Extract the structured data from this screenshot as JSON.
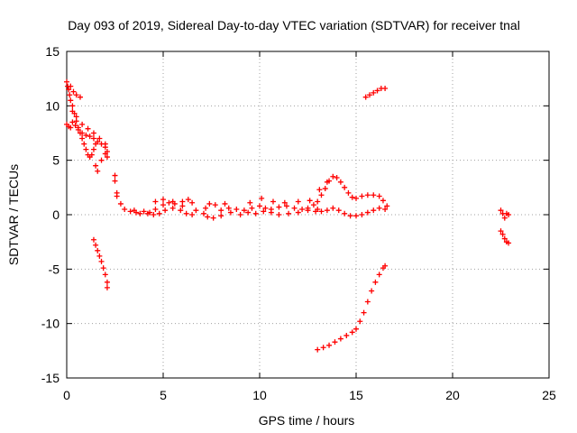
{
  "chart_data": {
    "type": "scatter",
    "title": "Day 093 of 2019, Sidereal Day-to-day VTEC variation (SDTVAR) for receiver tnal",
    "xlabel": "GPS time / hours",
    "ylabel": "SDTVAR / TECUs",
    "xlim": [
      0,
      25
    ],
    "ylim": [
      -15,
      15
    ],
    "xticks": [
      0,
      5,
      10,
      15,
      20,
      25
    ],
    "yticks": [
      -15,
      -10,
      -5,
      0,
      5,
      10,
      15
    ],
    "xtick_labels": [
      "0",
      "5",
      "10",
      "15",
      "20",
      "25"
    ],
    "ytick_labels": [
      "-15",
      "-10",
      "-5",
      "0",
      "5",
      "10",
      "15"
    ],
    "grid": true,
    "legend": "none",
    "marker": "+",
    "color": "#ff0000",
    "series": [
      {
        "points": [
          [
            0.0,
            12.2
          ],
          [
            0.05,
            11.8
          ],
          [
            0.1,
            11.5
          ],
          [
            0.15,
            11.0
          ],
          [
            0.2,
            10.5
          ],
          [
            0.3,
            10.0
          ],
          [
            0.4,
            9.3
          ],
          [
            0.5,
            8.6
          ],
          [
            0.6,
            8.0
          ],
          [
            0.7,
            7.5
          ],
          [
            0.8,
            7.0
          ],
          [
            0.9,
            6.5
          ],
          [
            1.0,
            6.0
          ],
          [
            1.1,
            5.5
          ],
          [
            1.2,
            5.3
          ],
          [
            1.3,
            5.5
          ],
          [
            1.4,
            6.0
          ],
          [
            1.5,
            6.5
          ],
          [
            0.2,
            11.8
          ],
          [
            0.35,
            11.3
          ],
          [
            0.5,
            11.0
          ],
          [
            0.7,
            10.8
          ],
          [
            0.0,
            8.3
          ],
          [
            0.1,
            8.1
          ],
          [
            0.2,
            8.0
          ],
          [
            0.3,
            8.5
          ],
          [
            0.45,
            8.2
          ],
          [
            0.6,
            7.8
          ],
          [
            0.8,
            7.5
          ],
          [
            1.0,
            7.3
          ],
          [
            1.2,
            7.2
          ],
          [
            1.4,
            7.0
          ],
          [
            1.6,
            6.7
          ],
          [
            1.8,
            6.5
          ],
          [
            2.0,
            6.2
          ],
          [
            2.1,
            5.8
          ],
          [
            0.3,
            9.5
          ],
          [
            0.5,
            9.0
          ],
          [
            0.8,
            8.3
          ],
          [
            1.1,
            7.9
          ],
          [
            1.4,
            7.5
          ],
          [
            1.7,
            7.0
          ],
          [
            2.0,
            6.5
          ],
          [
            1.5,
            4.5
          ],
          [
            1.6,
            4.0
          ],
          [
            1.8,
            5.0
          ],
          [
            2.0,
            5.6
          ],
          [
            2.1,
            5.3
          ]
        ]
      },
      {
        "points": [
          [
            2.5,
            3.6
          ],
          [
            2.5,
            3.1
          ],
          [
            2.6,
            2.0
          ],
          [
            2.6,
            1.7
          ],
          [
            2.8,
            1.0
          ],
          [
            3.0,
            0.5
          ],
          [
            3.3,
            0.3
          ],
          [
            3.6,
            0.2
          ],
          [
            4.0,
            0.3
          ],
          [
            4.3,
            0.2
          ],
          [
            4.6,
            0.5
          ],
          [
            5.0,
            0.9
          ],
          [
            5.3,
            1.1
          ],
          [
            5.6,
            1.0
          ],
          [
            6.0,
            1.2
          ],
          [
            6.3,
            1.4
          ],
          [
            6.5,
            1.1
          ],
          [
            6.7,
            0.4
          ],
          [
            6.5,
            0.0
          ],
          [
            6.2,
            0.1
          ],
          [
            5.9,
            0.4
          ],
          [
            5.5,
            0.6
          ],
          [
            5.1,
            0.4
          ],
          [
            4.8,
            0.1
          ],
          [
            4.5,
            0.0
          ],
          [
            4.2,
            0.1
          ],
          [
            3.8,
            0.1
          ],
          [
            3.5,
            0.4
          ],
          [
            4.6,
            1.2
          ],
          [
            5.0,
            1.4
          ],
          [
            5.5,
            1.2
          ],
          [
            6.0,
            0.8
          ]
        ]
      },
      {
        "points": [
          [
            7.1,
            0.1
          ],
          [
            7.2,
            0.6
          ],
          [
            7.4,
            1.0
          ],
          [
            7.7,
            0.9
          ],
          [
            8.0,
            0.4
          ],
          [
            8.4,
            0.6
          ],
          [
            8.8,
            0.5
          ],
          [
            9.2,
            0.4
          ],
          [
            9.6,
            0.6
          ],
          [
            10.0,
            0.8
          ],
          [
            10.3,
            0.6
          ],
          [
            10.6,
            0.5
          ],
          [
            11.0,
            0.7
          ],
          [
            11.4,
            0.8
          ],
          [
            11.8,
            0.6
          ],
          [
            12.2,
            0.5
          ],
          [
            12.5,
            0.6
          ],
          [
            12.8,
            0.9
          ],
          [
            7.3,
            -0.2
          ],
          [
            7.6,
            -0.3
          ],
          [
            8.0,
            -0.1
          ],
          [
            8.5,
            0.2
          ],
          [
            9.0,
            0.0
          ],
          [
            9.4,
            0.2
          ],
          [
            9.8,
            0.1
          ],
          [
            10.2,
            0.3
          ],
          [
            10.6,
            0.2
          ],
          [
            11.0,
            0.0
          ],
          [
            11.5,
            0.1
          ],
          [
            12.0,
            0.2
          ],
          [
            12.5,
            0.4
          ],
          [
            12.9,
            0.3
          ],
          [
            8.2,
            1.0
          ],
          [
            9.5,
            1.1
          ],
          [
            10.1,
            1.5
          ],
          [
            10.7,
            1.2
          ],
          [
            11.3,
            1.1
          ],
          [
            12.0,
            1.2
          ],
          [
            12.6,
            1.3
          ]
        ]
      },
      {
        "points": [
          [
            13.0,
            1.2
          ],
          [
            13.2,
            1.8
          ],
          [
            13.4,
            2.4
          ],
          [
            13.6,
            3.1
          ],
          [
            13.8,
            3.5
          ],
          [
            14.0,
            3.4
          ],
          [
            14.2,
            3.0
          ],
          [
            14.4,
            2.5
          ],
          [
            14.6,
            2.0
          ],
          [
            14.8,
            1.6
          ],
          [
            15.0,
            1.5
          ],
          [
            15.3,
            1.7
          ],
          [
            15.6,
            1.8
          ],
          [
            15.9,
            1.8
          ],
          [
            16.2,
            1.7
          ],
          [
            16.4,
            1.3
          ],
          [
            16.6,
            0.8
          ],
          [
            16.5,
            0.5
          ],
          [
            16.2,
            0.6
          ],
          [
            15.9,
            0.4
          ],
          [
            15.6,
            0.2
          ],
          [
            15.3,
            0.0
          ],
          [
            15.0,
            -0.1
          ],
          [
            14.7,
            -0.1
          ],
          [
            14.4,
            0.1
          ],
          [
            14.1,
            0.4
          ],
          [
            13.8,
            0.6
          ],
          [
            13.5,
            0.4
          ],
          [
            13.2,
            0.3
          ],
          [
            13.0,
            0.5
          ],
          [
            13.1,
            2.3
          ],
          [
            13.5,
            3.0
          ]
        ]
      },
      {
        "points": [
          [
            15.5,
            10.8
          ],
          [
            15.7,
            11.0
          ],
          [
            15.9,
            11.2
          ],
          [
            16.1,
            11.4
          ],
          [
            16.3,
            11.6
          ],
          [
            16.5,
            11.6
          ]
        ]
      },
      {
        "points": [
          [
            1.4,
            -2.3
          ],
          [
            1.5,
            -2.8
          ],
          [
            1.6,
            -3.3
          ],
          [
            1.7,
            -3.8
          ],
          [
            1.8,
            -4.3
          ],
          [
            1.9,
            -4.9
          ],
          [
            2.0,
            -5.5
          ],
          [
            2.1,
            -6.2
          ],
          [
            2.1,
            -6.7
          ]
        ]
      },
      {
        "points": [
          [
            13.0,
            -12.4
          ],
          [
            13.3,
            -12.2
          ],
          [
            13.6,
            -12.0
          ],
          [
            13.9,
            -11.7
          ],
          [
            14.2,
            -11.4
          ],
          [
            14.5,
            -11.1
          ],
          [
            14.8,
            -10.8
          ],
          [
            15.0,
            -10.5
          ],
          [
            15.2,
            -9.8
          ],
          [
            15.4,
            -9.0
          ],
          [
            15.6,
            -8.0
          ],
          [
            15.8,
            -7.0
          ],
          [
            16.0,
            -6.2
          ],
          [
            16.2,
            -5.5
          ],
          [
            16.4,
            -4.9
          ],
          [
            16.5,
            -4.7
          ]
        ]
      },
      {
        "points": [
          [
            22.5,
            0.4
          ],
          [
            22.6,
            0.1
          ],
          [
            22.7,
            -0.3
          ],
          [
            22.8,
            0.1
          ],
          [
            22.9,
            0.0
          ],
          [
            22.5,
            -1.5
          ],
          [
            22.6,
            -1.8
          ],
          [
            22.7,
            -2.2
          ],
          [
            22.8,
            -2.5
          ],
          [
            22.9,
            -2.6
          ]
        ]
      }
    ]
  }
}
